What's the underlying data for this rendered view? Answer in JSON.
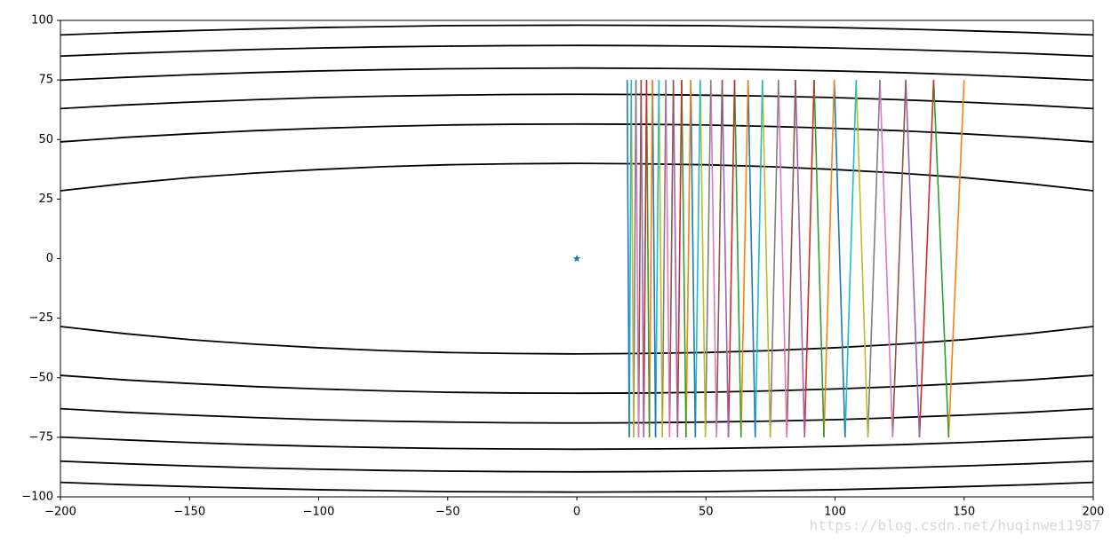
{
  "chart_data": {
    "type": "line",
    "xlim": [
      -200,
      200
    ],
    "ylim": [
      -100,
      100
    ],
    "xticks": [
      {
        "value": -200,
        "label": "−200"
      },
      {
        "value": -150,
        "label": "−150"
      },
      {
        "value": -100,
        "label": "−100"
      },
      {
        "value": -50,
        "label": "−50"
      },
      0,
      50,
      100,
      150,
      200
    ],
    "yticks": [
      {
        "value": -100,
        "label": "−100"
      },
      {
        "value": -75,
        "label": "−75"
      },
      {
        "value": -50,
        "label": "−50"
      },
      {
        "value": -25,
        "label": "−25"
      },
      0,
      25,
      50,
      75,
      100
    ],
    "contours": {
      "x": [
        -200,
        -175,
        -150,
        -125,
        -100,
        -75,
        -50,
        -25,
        0,
        25,
        50,
        75,
        100,
        125,
        150,
        175,
        200
      ],
      "series": [
        {
          "color": "#000000",
          "values": [
            28.5,
            31.5,
            34.0,
            35.9,
            37.4,
            38.6,
            39.4,
            39.8,
            40,
            39.8,
            39.4,
            38.6,
            37.4,
            35.9,
            34.0,
            31.5,
            28.5
          ]
        },
        {
          "color": "#000000",
          "values": [
            49.0,
            50.9,
            52.4,
            53.7,
            54.7,
            55.5,
            56.1,
            56.4,
            56.5,
            56.4,
            56.1,
            55.5,
            54.7,
            53.7,
            52.4,
            50.9,
            49.0
          ]
        },
        {
          "color": "#000000",
          "values": [
            63.0,
            64.5,
            65.7,
            66.7,
            67.6,
            68.2,
            68.6,
            68.9,
            69,
            68.9,
            68.6,
            68.2,
            67.6,
            66.7,
            65.7,
            64.5,
            63.0
          ]
        },
        {
          "color": "#000000",
          "values": [
            74.9,
            76.1,
            77.2,
            78.1,
            78.8,
            79.3,
            79.7,
            79.9,
            80,
            79.9,
            79.7,
            79.3,
            78.8,
            78.1,
            77.2,
            76.1,
            74.9
          ]
        },
        {
          "color": "#000000",
          "values": [
            85.0,
            86.1,
            87.0,
            87.8,
            88.4,
            88.9,
            89.2,
            89.4,
            89.5,
            89.4,
            89.2,
            88.9,
            88.4,
            87.8,
            87.0,
            86.1,
            85.0
          ]
        },
        {
          "color": "#000000",
          "values": [
            93.9,
            94.9,
            95.7,
            96.4,
            97.0,
            97.4,
            97.8,
            97.9,
            98,
            97.9,
            97.8,
            97.4,
            97.0,
            96.4,
            95.7,
            94.9,
            93.9
          ]
        },
        {
          "color": "#000000",
          "values": [
            -28.5,
            -31.5,
            -34.0,
            -35.9,
            -37.4,
            -38.6,
            -39.4,
            -39.8,
            -40,
            -39.8,
            -39.4,
            -38.6,
            -37.4,
            -35.9,
            -34.0,
            -31.5,
            -28.5
          ]
        },
        {
          "color": "#000000",
          "values": [
            -49.0,
            -50.9,
            -52.4,
            -53.7,
            -54.7,
            -55.5,
            -56.1,
            -56.4,
            -56.5,
            -56.4,
            -56.1,
            -55.5,
            -54.7,
            -53.7,
            -52.4,
            -50.9,
            -49.0
          ]
        },
        {
          "color": "#000000",
          "values": [
            -63.0,
            -64.5,
            -65.7,
            -66.7,
            -67.6,
            -68.2,
            -68.6,
            -68.9,
            -69,
            -68.9,
            -68.6,
            -68.2,
            -67.6,
            -66.7,
            -65.7,
            -64.5,
            -63.0
          ]
        },
        {
          "color": "#000000",
          "values": [
            -74.9,
            -76.1,
            -77.2,
            -78.1,
            -78.8,
            -79.3,
            -79.7,
            -79.9,
            -80,
            -79.9,
            -79.7,
            -79.3,
            -78.8,
            -78.1,
            -77.2,
            -76.1,
            -74.9
          ]
        },
        {
          "color": "#000000",
          "values": [
            -85.0,
            -86.1,
            -87.0,
            -87.8,
            -88.4,
            -88.9,
            -89.2,
            -89.4,
            -89.5,
            -89.4,
            -89.2,
            -88.9,
            -88.4,
            -87.8,
            -87.0,
            -86.1,
            -85.0
          ]
        },
        {
          "color": "#000000",
          "values": [
            -93.9,
            -94.9,
            -95.7,
            -96.4,
            -97.0,
            -97.4,
            -97.8,
            -97.9,
            -98,
            -97.9,
            -97.8,
            -97.4,
            -97.0,
            -96.4,
            -95.7,
            -94.9,
            -93.9
          ]
        }
      ]
    },
    "path": {
      "x": [
        150,
        144,
        138.2,
        132.7,
        127.4,
        122.3,
        117.4,
        112.7,
        108.2,
        103.9,
        99.7,
        95.7,
        91.9,
        88.2,
        84.7,
        81.3,
        78.1,
        74.9,
        71.9,
        69.1,
        66.3,
        63.6,
        61.1,
        58.7,
        56.3,
        54.1,
        51.9,
        49.8,
        47.8,
        45.9,
        44.1,
        42.3,
        40.6,
        39.0,
        37.4,
        35.9,
        34.5,
        33.1,
        31.8,
        30.5,
        29.3,
        28.1,
        27.0,
        25.9,
        24.9,
        23.9,
        22.9,
        22.0,
        21.1,
        20.3,
        19.5
      ],
      "y": [
        75,
        -75,
        75,
        -75,
        75,
        -75,
        75,
        -75,
        75,
        -75,
        75,
        -75,
        75,
        -75,
        75,
        -75,
        75,
        -75,
        75,
        -75,
        75,
        -75,
        75,
        -75,
        75,
        -75,
        75,
        -75,
        75,
        -75,
        75,
        -75,
        75,
        -75,
        75,
        -75,
        75,
        -75,
        75,
        -75,
        75,
        -75,
        75,
        -75,
        75,
        -75,
        75,
        -75,
        75,
        -75,
        75
      ],
      "colors": [
        "#ff7f0e",
        "#2ca02c",
        "#d62728",
        "#9467bd",
        "#8c564b",
        "#e377c2",
        "#7f7f7f",
        "#bcbd22",
        "#17becf",
        "#1f77b4"
      ]
    },
    "marker": {
      "x": 0,
      "y": 0,
      "color": "#1f77b4"
    }
  },
  "watermark": "https://blog.csdn.net/huqinwei1987"
}
